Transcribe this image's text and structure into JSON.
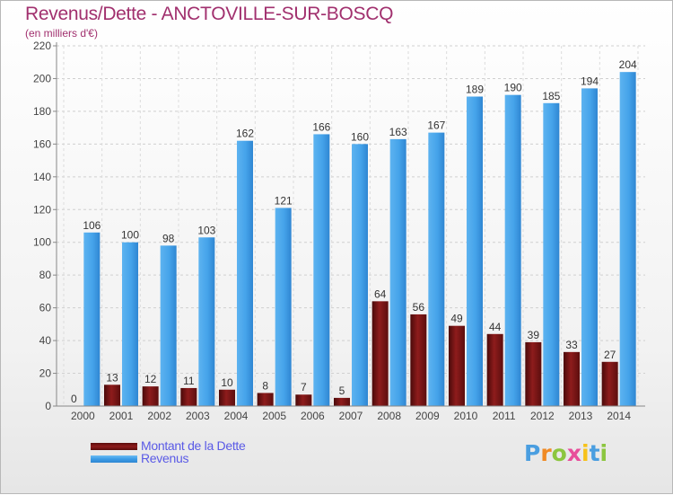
{
  "title": "Revenus/Dette - ANCTOVILLE-SUR-BOSCQ",
  "subtitle": "(en milliers d'€)",
  "logo": {
    "letters": [
      "P",
      "r",
      "o",
      "x",
      "i",
      "t",
      "i"
    ],
    "colors": [
      "#4a9ee0",
      "#f08a24",
      "#8cc63f",
      "#e84e9a",
      "#f7c21a",
      "#4a9ee0",
      "#8cc63f"
    ]
  },
  "colors": {
    "title": "#a1306e",
    "dette": "#7a1414",
    "revenus": "#3b9be6",
    "legend_text": "#5a5ae6"
  },
  "chart_data": {
    "type": "bar",
    "title": "Revenus/Dette - ANCTOVILLE-SUR-BOSCQ",
    "ylabel": "(en milliers d'€)",
    "categories": [
      "2000",
      "2001",
      "2002",
      "2003",
      "2004",
      "2005",
      "2006",
      "2007",
      "2008",
      "2009",
      "2010",
      "2011",
      "2012",
      "2013",
      "2014"
    ],
    "series": [
      {
        "name": "Montant de la Dette",
        "values": [
          0,
          13,
          12,
          11,
          10,
          8,
          7,
          5,
          64,
          56,
          49,
          44,
          39,
          33,
          27
        ]
      },
      {
        "name": "Revenus",
        "values": [
          106,
          100,
          98,
          103,
          162,
          121,
          166,
          160,
          163,
          167,
          189,
          190,
          185,
          194,
          204
        ]
      }
    ],
    "ylim": [
      0,
      220
    ],
    "yticks": [
      0,
      20,
      40,
      60,
      80,
      100,
      120,
      140,
      160,
      180,
      200,
      220
    ],
    "grid": true,
    "legend": "bottom-left"
  }
}
